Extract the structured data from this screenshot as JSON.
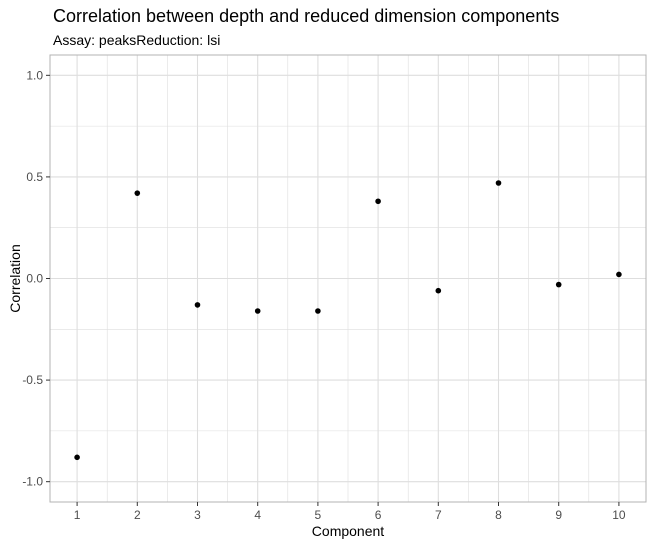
{
  "chart_data": {
    "type": "scatter",
    "title": "Correlation between depth and reduced dimension components",
    "subtitle": "Assay: peaksReduction: lsi",
    "xlabel": "Component",
    "ylabel": "Correlation",
    "x_ticks": [
      "1",
      "2",
      "3",
      "4",
      "5",
      "6",
      "7",
      "8",
      "9",
      "10"
    ],
    "y_ticks": [
      "-1.0",
      "-0.5",
      "0.0",
      "0.5",
      "1.0"
    ],
    "xlim": [
      0.55,
      10.45
    ],
    "ylim": [
      -1.1,
      1.1
    ],
    "grid": true,
    "points": [
      {
        "x": 1,
        "y": -0.88
      },
      {
        "x": 2,
        "y": 0.42
      },
      {
        "x": 3,
        "y": -0.13
      },
      {
        "x": 4,
        "y": -0.16
      },
      {
        "x": 5,
        "y": -0.16
      },
      {
        "x": 6,
        "y": 0.38
      },
      {
        "x": 7,
        "y": -0.06
      },
      {
        "x": 8,
        "y": 0.47
      },
      {
        "x": 9,
        "y": -0.03
      },
      {
        "x": 10,
        "y": 0.02
      }
    ],
    "colors": {
      "point": "#000000",
      "grid": "#dedede",
      "panel_border": "#b3b3b3",
      "tick_label": "#4d4d4d"
    }
  }
}
